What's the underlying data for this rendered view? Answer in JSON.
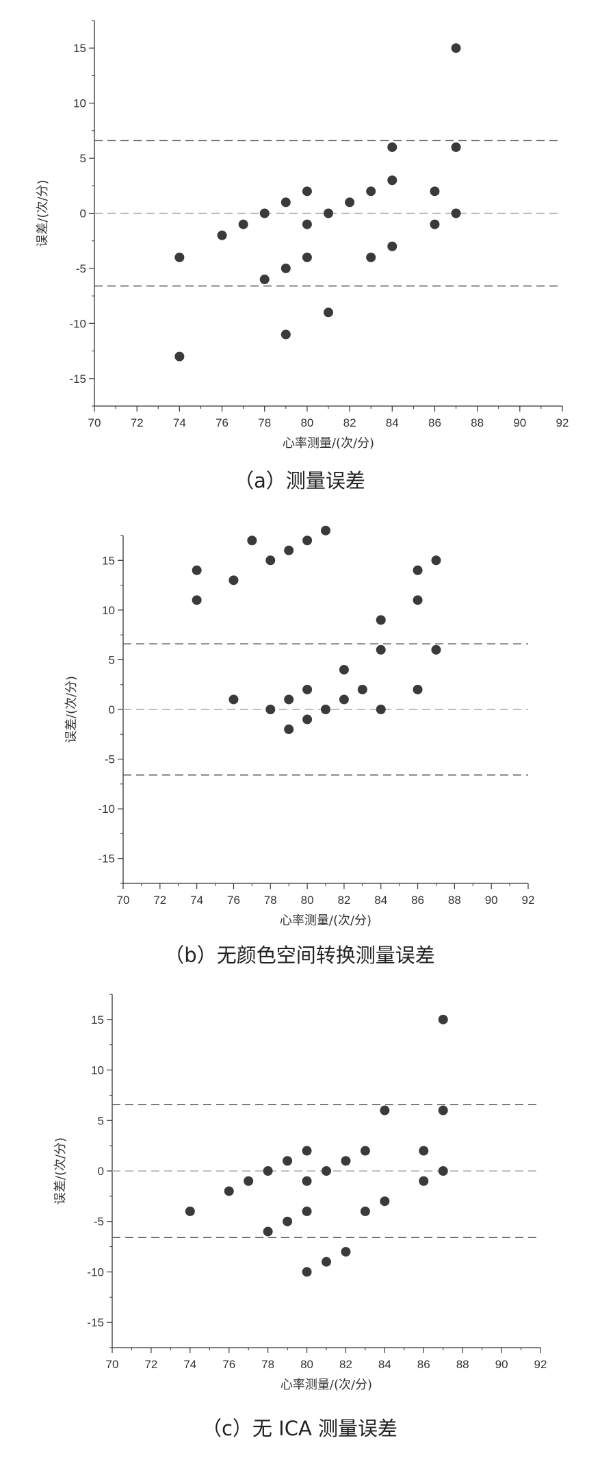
{
  "chart_data": [
    {
      "type": "scatter",
      "caption": "（a）测量误差",
      "xlabel": "心率测量/(次/分)",
      "ylabel": "误差/(次/分)",
      "xlim": [
        70,
        92
      ],
      "ylim": [
        -17.5,
        17.5
      ],
      "xticks": [
        70,
        72,
        74,
        76,
        78,
        80,
        82,
        84,
        86,
        88,
        90,
        92
      ],
      "yticks": [
        -15,
        -10,
        -5,
        0,
        5,
        10,
        15
      ],
      "reference_lines": [
        6.6,
        0,
        -6.6
      ],
      "points": [
        [
          74,
          -4
        ],
        [
          74,
          -13
        ],
        [
          76,
          -2
        ],
        [
          77,
          -1
        ],
        [
          78,
          0
        ],
        [
          78,
          -6
        ],
        [
          79,
          1
        ],
        [
          79,
          -5
        ],
        [
          79,
          -11
        ],
        [
          80,
          2
        ],
        [
          80,
          -1
        ],
        [
          80,
          -4
        ],
        [
          81,
          0
        ],
        [
          81,
          -9
        ],
        [
          82,
          1
        ],
        [
          83,
          2
        ],
        [
          83,
          -4
        ],
        [
          84,
          6
        ],
        [
          84,
          3
        ],
        [
          84,
          -3
        ],
        [
          86,
          2
        ],
        [
          86,
          -1
        ],
        [
          87,
          15
        ],
        [
          87,
          6
        ],
        [
          87,
          0
        ]
      ]
    },
    {
      "type": "scatter",
      "caption": "（b）无颜色空间转换测量误差",
      "xlabel": "心率测量/(次/分)",
      "ylabel": "误差/(次/分)",
      "xlim": [
        70,
        92
      ],
      "ylim": [
        -17.5,
        17.5
      ],
      "xticks": [
        70,
        72,
        74,
        76,
        78,
        80,
        82,
        84,
        86,
        88,
        90,
        92
      ],
      "yticks": [
        -15,
        -10,
        -5,
        0,
        5,
        10,
        15
      ],
      "reference_lines": [
        6.6,
        0,
        -6.6
      ],
      "points": [
        [
          74,
          14
        ],
        [
          74,
          11
        ],
        [
          76,
          13
        ],
        [
          76,
          1
        ],
        [
          77,
          17
        ],
        [
          78,
          15
        ],
        [
          78,
          0
        ],
        [
          79,
          16
        ],
        [
          79,
          1
        ],
        [
          79,
          -2
        ],
        [
          80,
          17
        ],
        [
          80,
          2
        ],
        [
          80,
          -1
        ],
        [
          81,
          18
        ],
        [
          81,
          0
        ],
        [
          82,
          4
        ],
        [
          82,
          1
        ],
        [
          83,
          2
        ],
        [
          84,
          9
        ],
        [
          84,
          6
        ],
        [
          84,
          0
        ],
        [
          86,
          14
        ],
        [
          86,
          11
        ],
        [
          86,
          2
        ],
        [
          87,
          15
        ],
        [
          87,
          6
        ]
      ]
    },
    {
      "type": "scatter",
      "caption": "（c）无 ICA 测量误差",
      "xlabel": "心率测量/(次/分)",
      "ylabel": "误差/(次/分)",
      "xlim": [
        70,
        92
      ],
      "ylim": [
        -17.5,
        17.5
      ],
      "xticks": [
        70,
        72,
        74,
        76,
        78,
        80,
        82,
        84,
        86,
        88,
        90,
        92
      ],
      "yticks": [
        -15,
        -10,
        -5,
        0,
        5,
        10,
        15
      ],
      "reference_lines": [
        6.6,
        0,
        -6.6
      ],
      "points": [
        [
          74,
          -4
        ],
        [
          76,
          -2
        ],
        [
          77,
          -1
        ],
        [
          78,
          0
        ],
        [
          78,
          -6
        ],
        [
          79,
          1
        ],
        [
          79,
          -5
        ],
        [
          80,
          2
        ],
        [
          80,
          -1
        ],
        [
          80,
          -4
        ],
        [
          80,
          -10
        ],
        [
          81,
          0
        ],
        [
          81,
          -9
        ],
        [
          82,
          1
        ],
        [
          82,
          -8
        ],
        [
          83,
          2
        ],
        [
          83,
          -4
        ],
        [
          84,
          6
        ],
        [
          84,
          -3
        ],
        [
          86,
          2
        ],
        [
          86,
          -1
        ],
        [
          87,
          15
        ],
        [
          87,
          6
        ],
        [
          87,
          0
        ]
      ]
    }
  ],
  "colors": {
    "marker": "#3a3a3a",
    "axis": "#333333",
    "limit_line": "#555555",
    "mean_line": "#aaaaaa"
  }
}
